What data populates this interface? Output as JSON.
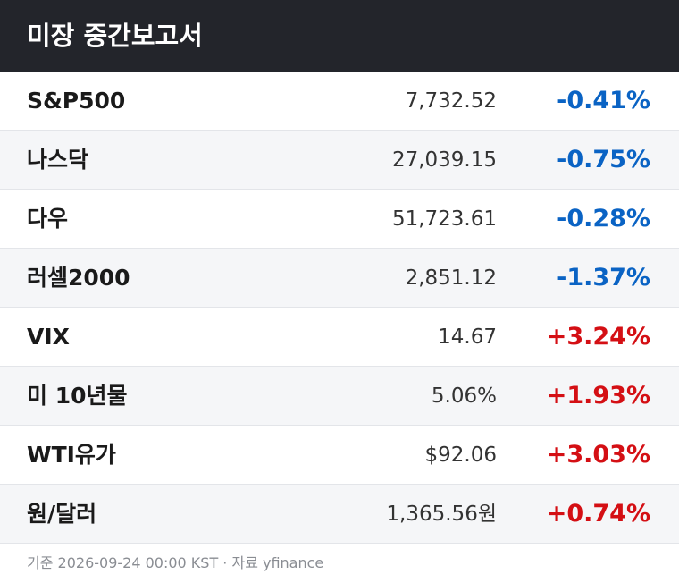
{
  "header": {
    "title": "미장 중간보고서"
  },
  "table": {
    "rows": [
      {
        "name": "S&P500",
        "price": "7,732.52",
        "change": "-0.41%",
        "color": "#0a63c4"
      },
      {
        "name": "나스닥",
        "price": "27,039.15",
        "change": "-0.75%",
        "color": "#0a63c4"
      },
      {
        "name": "다우",
        "price": "51,723.61",
        "change": "-0.28%",
        "color": "#0a63c4"
      },
      {
        "name": "러셀2000",
        "price": "2,851.12",
        "change": "-1.37%",
        "color": "#0a63c4"
      },
      {
        "name": "VIX",
        "price": "14.67",
        "change": "+3.24%",
        "color": "#d40f14"
      },
      {
        "name": "미 10년물",
        "price": "5.06%",
        "change": "+1.93%",
        "color": "#d40f14"
      },
      {
        "name": "WTI유가",
        "price": "$92.06",
        "change": "+3.03%",
        "color": "#d40f14"
      },
      {
        "name": "원/달러",
        "price": "1,365.56원",
        "change": "+0.74%",
        "color": "#d40f14"
      }
    ]
  },
  "footer": {
    "note": "기준 2026-09-24 00:00 KST · 자료 yfinance"
  }
}
